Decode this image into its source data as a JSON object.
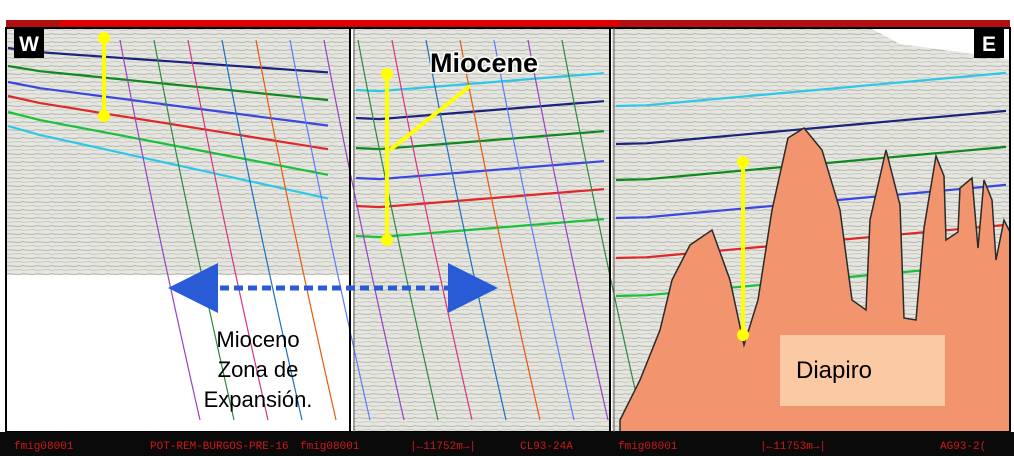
{
  "corners": {
    "west": "W",
    "east": "E"
  },
  "labels": {
    "miocene": "Miocene",
    "expansion_line1": "Mioceno",
    "expansion_line2": "Zona de",
    "expansion_line3": "Expansión.",
    "diapir": "Diapiro"
  },
  "footer": {
    "items": [
      "fmig08001",
      "POT-REM-BURGOS-PRE-16",
      "fmig08001",
      "|←11752m→|",
      "CL93-24A",
      "fmig08001",
      "|←11753m→|",
      "AG93-2("
    ]
  },
  "colors": {
    "salt": "#f2946e",
    "salt_box": "#fbc9a4",
    "marker": "#ffff00",
    "arrow": "#2a5bd7",
    "frame": "#000000",
    "footer_bg": "#0a0a0a",
    "footer_text": "#d01818",
    "horizons": [
      "#2dc8e8",
      "#1a237e",
      "#0e8a1e",
      "#3a48e0",
      "#e02828",
      "#18c23a"
    ]
  },
  "icons": {
    "expansion_arrow": "double-arrow-icon"
  }
}
